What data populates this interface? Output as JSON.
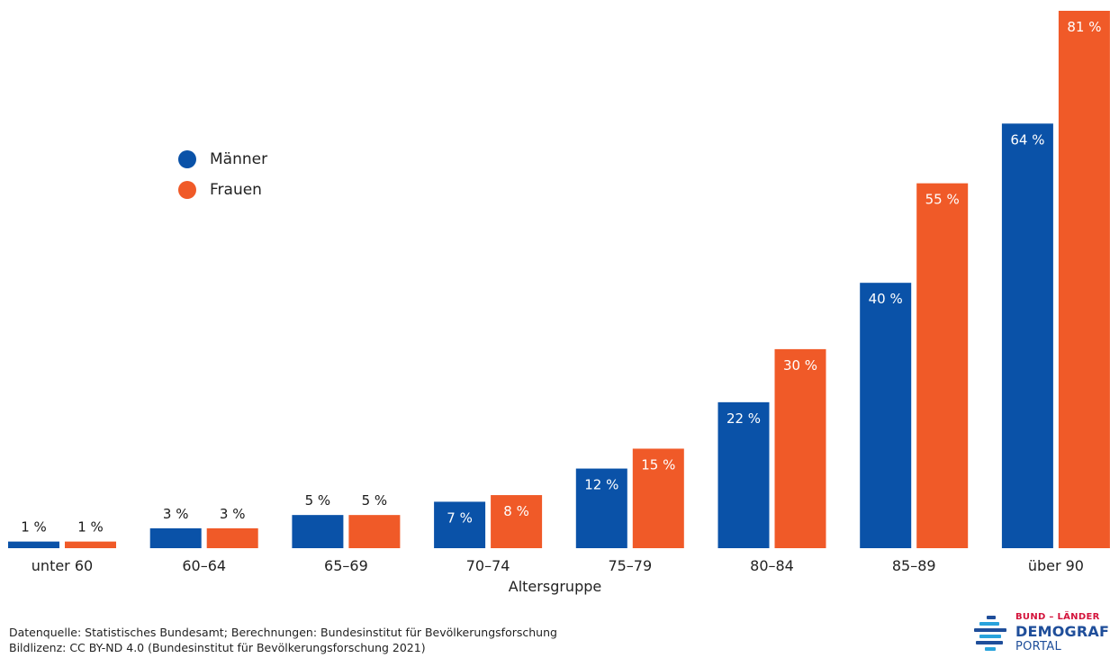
{
  "chart_data": {
    "type": "bar",
    "categories": [
      "unter 60",
      "60–64",
      "65–69",
      "70–74",
      "75–79",
      "80–84",
      "85–89",
      "über 90"
    ],
    "series": [
      {
        "name": "Männer",
        "color": "#0a52a8",
        "values": [
          1,
          3,
          5,
          7,
          12,
          22,
          40,
          64
        ],
        "labels": [
          "1 %",
          "3 %",
          "5 %",
          "7 %",
          "12 %",
          "22 %",
          "40 %",
          "64 %"
        ]
      },
      {
        "name": "Frauen",
        "color": "#f05a28",
        "values": [
          1,
          3,
          5,
          8,
          15,
          30,
          55,
          81
        ],
        "labels": [
          "1 %",
          "3 %",
          "5 %",
          "8 %",
          "15 %",
          "30 %",
          "55 %",
          "81 %"
        ]
      }
    ],
    "xlabel": "Altersgruppe",
    "ylabel": "",
    "ylim": [
      0,
      81
    ],
    "grid": false,
    "legend_position": "upper-left"
  },
  "footer": {
    "source": "Datenquelle: Statistisches Bundesamt; Berechnungen: Bundesinstitut für Bevölkerungsforschung",
    "license": "Bildlizenz: CC BY-ND 4.0 (Bundesinstitut für Bevölkerungsforschung 2021)"
  },
  "logo": {
    "line1": "BUND – LÄNDER",
    "line2": "DEMOGRAFIE",
    "line3": "PORTAL",
    "icon": "demografie-portal-logo-icon"
  }
}
